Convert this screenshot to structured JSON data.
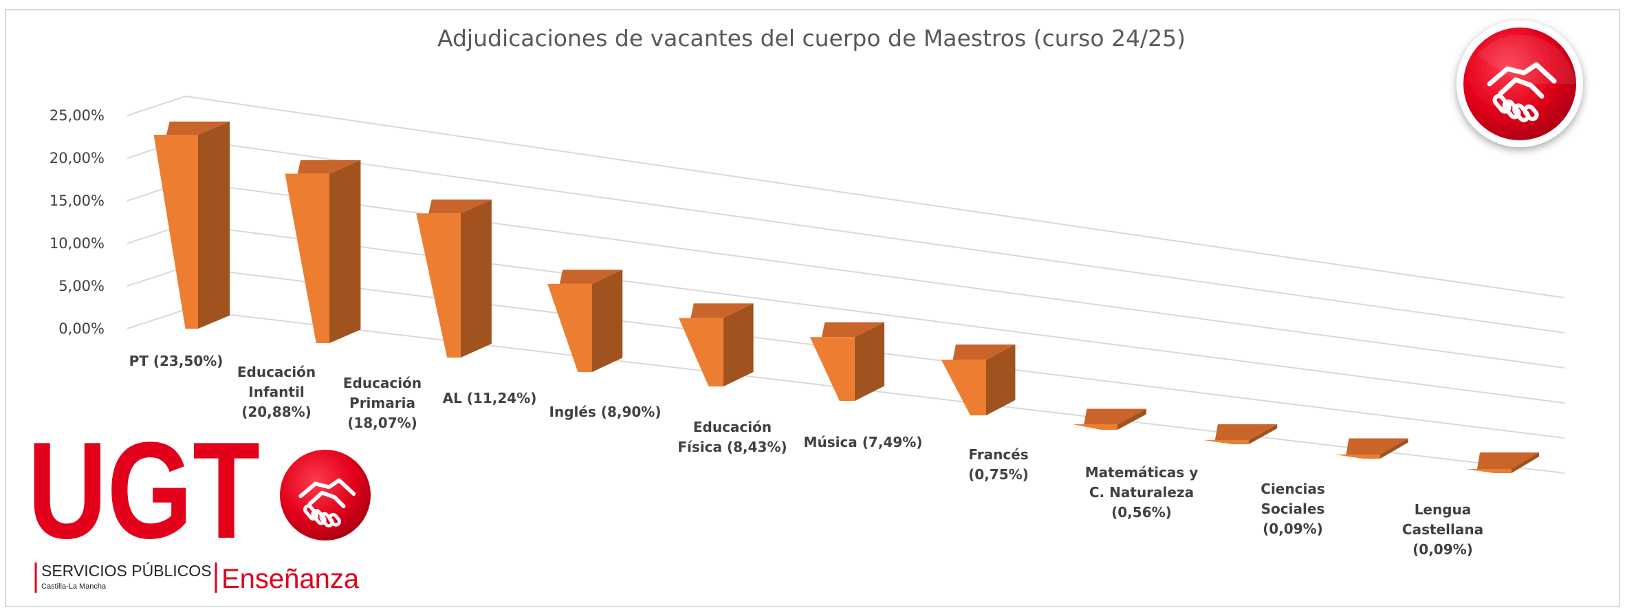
{
  "chart_data": {
    "type": "bar",
    "title": "Adjudicaciones de vacantes del cuerpo de Maestros (curso 24/25)",
    "categories": [
      "PT (23,50%)",
      "Educación Infantil (20,88%)",
      "Educación Primaria (18,07%)",
      "AL (11,24%)",
      "Inglés (8,90%)",
      "Educación Física (8,43%)",
      "Música (7,49%)",
      "Francés (0,75%)",
      "Matemáticas y C. Naturaleza (0,56%)",
      "Ciencias Sociales (0,09%)",
      "Lengua Castellana (0,09%)"
    ],
    "category_lines": [
      [
        "PT (23,50%)"
      ],
      [
        "Educación",
        "Infantil",
        "(20,88%)"
      ],
      [
        "Educación",
        "Primaria",
        "(18,07%)"
      ],
      [
        "AL (11,24%)"
      ],
      [
        "Inglés (8,90%)"
      ],
      [
        "Educación",
        "Física (8,43%)"
      ],
      [
        "Música (7,49%)"
      ],
      [
        "Francés",
        "(0,75%)"
      ],
      [
        "Matemáticas y",
        "C. Naturaleza",
        "(0,56%)"
      ],
      [
        "Ciencias",
        "Sociales",
        "(0,09%)"
      ],
      [
        "Lengua",
        "Castellana",
        "(0,09%)"
      ]
    ],
    "values": [
      23.5,
      20.88,
      18.07,
      11.24,
      8.9,
      8.43,
      7.49,
      0.75,
      0.56,
      0.09,
      0.09
    ],
    "y_ticks": [
      "0,00%",
      "5,00%",
      "10,00%",
      "15,00%",
      "20,00%",
      "25,00%"
    ],
    "ylim": [
      0,
      25
    ],
    "grid": true,
    "legend": "none",
    "bar_color": "#ed7d31"
  },
  "logo": {
    "letters": "UGT",
    "services": "SERVICIOS PÚBLICOS",
    "region": "Castilla-La Mancha",
    "sector": "Enseñanza",
    "icon": "handshake-icon",
    "color": "#e2001a"
  }
}
